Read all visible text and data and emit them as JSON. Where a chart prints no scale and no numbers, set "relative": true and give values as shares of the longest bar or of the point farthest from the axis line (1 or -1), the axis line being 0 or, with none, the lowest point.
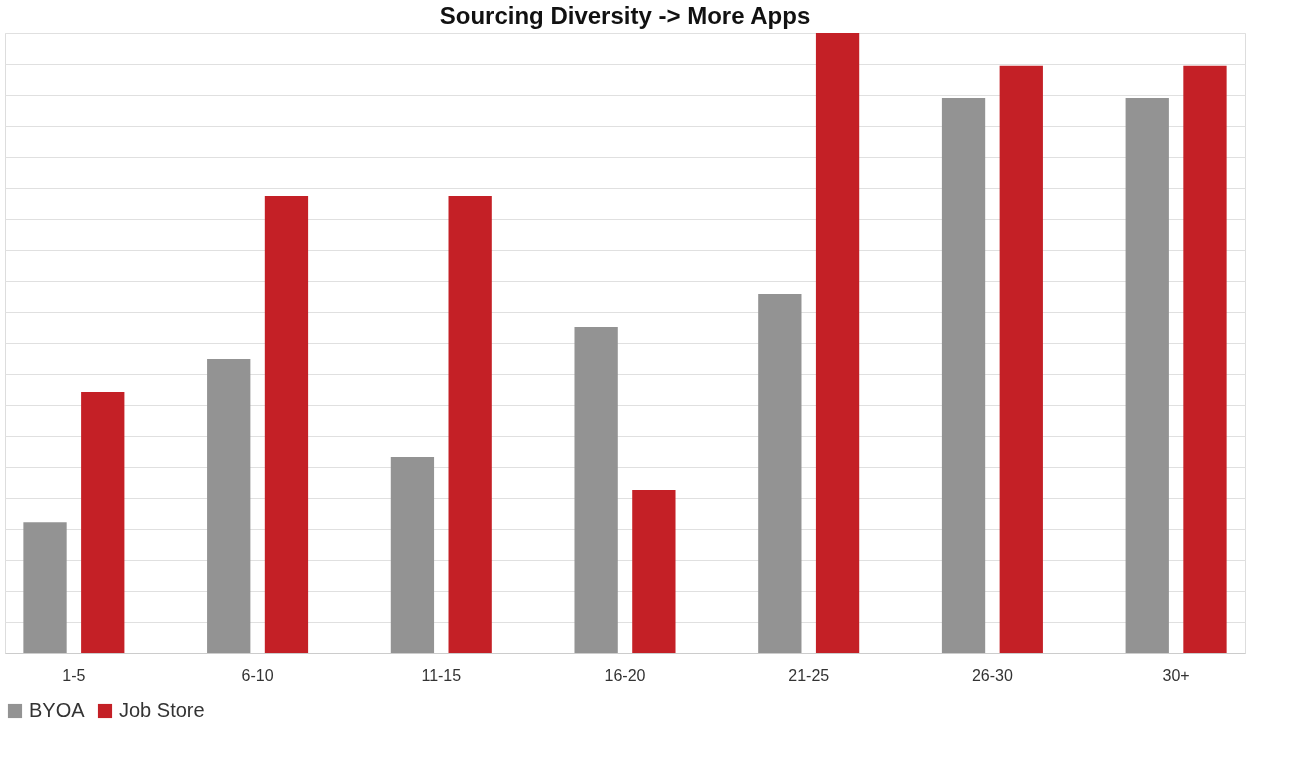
{
  "chart_data": {
    "type": "bar",
    "title": "Sourcing Diversity -> More Apps",
    "relative": true,
    "grid": "y",
    "legend": "bottom",
    "categories": [
      "1-5",
      "6-10",
      "11-15",
      "16-20",
      "21-25",
      "26-30",
      "30+"
    ],
    "series": [
      {
        "name": "BYOA",
        "color": "#939393",
        "values": [
          0.211,
          0.474,
          0.316,
          0.526,
          0.579,
          0.895,
          0.895
        ]
      },
      {
        "name": "Job Store",
        "color": "#c42026",
        "values": [
          0.421,
          0.737,
          0.737,
          0.263,
          1,
          0.947,
          0.947
        ]
      }
    ]
  }
}
